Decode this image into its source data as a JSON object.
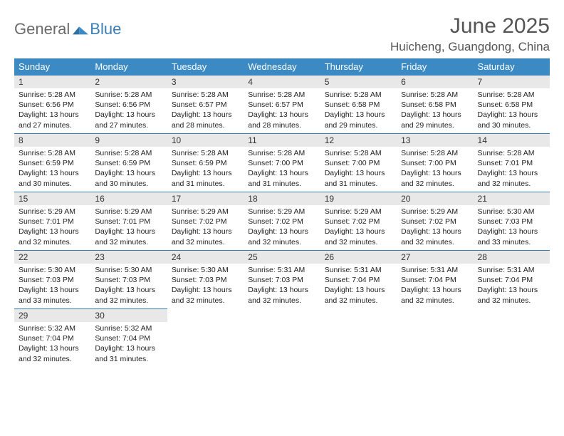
{
  "brand": {
    "part1": "General",
    "part2": "Blue"
  },
  "title": "June 2025",
  "location": "Huicheng, Guangdong, China",
  "colors": {
    "header_bg": "#3b8ac4",
    "header_fg": "#ffffff",
    "daynum_bg": "#e8e8e8",
    "rule": "#3b7fb8",
    "logo_gray": "#6b6b6b",
    "logo_blue": "#3b7fb8",
    "title_color": "#555555",
    "text_color": "#222222",
    "background": "#ffffff"
  },
  "typography": {
    "title_fontsize": 30,
    "location_fontsize": 17,
    "weekday_fontsize": 13,
    "daynum_fontsize": 12,
    "body_fontsize": 10.5
  },
  "weekdays": [
    "Sunday",
    "Monday",
    "Tuesday",
    "Wednesday",
    "Thursday",
    "Friday",
    "Saturday"
  ],
  "weeks": [
    [
      {
        "n": "1",
        "sr": "Sunrise: 5:28 AM",
        "ss": "Sunset: 6:56 PM",
        "d1": "Daylight: 13 hours",
        "d2": "and 27 minutes."
      },
      {
        "n": "2",
        "sr": "Sunrise: 5:28 AM",
        "ss": "Sunset: 6:56 PM",
        "d1": "Daylight: 13 hours",
        "d2": "and 27 minutes."
      },
      {
        "n": "3",
        "sr": "Sunrise: 5:28 AM",
        "ss": "Sunset: 6:57 PM",
        "d1": "Daylight: 13 hours",
        "d2": "and 28 minutes."
      },
      {
        "n": "4",
        "sr": "Sunrise: 5:28 AM",
        "ss": "Sunset: 6:57 PM",
        "d1": "Daylight: 13 hours",
        "d2": "and 28 minutes."
      },
      {
        "n": "5",
        "sr": "Sunrise: 5:28 AM",
        "ss": "Sunset: 6:58 PM",
        "d1": "Daylight: 13 hours",
        "d2": "and 29 minutes."
      },
      {
        "n": "6",
        "sr": "Sunrise: 5:28 AM",
        "ss": "Sunset: 6:58 PM",
        "d1": "Daylight: 13 hours",
        "d2": "and 29 minutes."
      },
      {
        "n": "7",
        "sr": "Sunrise: 5:28 AM",
        "ss": "Sunset: 6:58 PM",
        "d1": "Daylight: 13 hours",
        "d2": "and 30 minutes."
      }
    ],
    [
      {
        "n": "8",
        "sr": "Sunrise: 5:28 AM",
        "ss": "Sunset: 6:59 PM",
        "d1": "Daylight: 13 hours",
        "d2": "and 30 minutes."
      },
      {
        "n": "9",
        "sr": "Sunrise: 5:28 AM",
        "ss": "Sunset: 6:59 PM",
        "d1": "Daylight: 13 hours",
        "d2": "and 30 minutes."
      },
      {
        "n": "10",
        "sr": "Sunrise: 5:28 AM",
        "ss": "Sunset: 6:59 PM",
        "d1": "Daylight: 13 hours",
        "d2": "and 31 minutes."
      },
      {
        "n": "11",
        "sr": "Sunrise: 5:28 AM",
        "ss": "Sunset: 7:00 PM",
        "d1": "Daylight: 13 hours",
        "d2": "and 31 minutes."
      },
      {
        "n": "12",
        "sr": "Sunrise: 5:28 AM",
        "ss": "Sunset: 7:00 PM",
        "d1": "Daylight: 13 hours",
        "d2": "and 31 minutes."
      },
      {
        "n": "13",
        "sr": "Sunrise: 5:28 AM",
        "ss": "Sunset: 7:00 PM",
        "d1": "Daylight: 13 hours",
        "d2": "and 32 minutes."
      },
      {
        "n": "14",
        "sr": "Sunrise: 5:28 AM",
        "ss": "Sunset: 7:01 PM",
        "d1": "Daylight: 13 hours",
        "d2": "and 32 minutes."
      }
    ],
    [
      {
        "n": "15",
        "sr": "Sunrise: 5:29 AM",
        "ss": "Sunset: 7:01 PM",
        "d1": "Daylight: 13 hours",
        "d2": "and 32 minutes."
      },
      {
        "n": "16",
        "sr": "Sunrise: 5:29 AM",
        "ss": "Sunset: 7:01 PM",
        "d1": "Daylight: 13 hours",
        "d2": "and 32 minutes."
      },
      {
        "n": "17",
        "sr": "Sunrise: 5:29 AM",
        "ss": "Sunset: 7:02 PM",
        "d1": "Daylight: 13 hours",
        "d2": "and 32 minutes."
      },
      {
        "n": "18",
        "sr": "Sunrise: 5:29 AM",
        "ss": "Sunset: 7:02 PM",
        "d1": "Daylight: 13 hours",
        "d2": "and 32 minutes."
      },
      {
        "n": "19",
        "sr": "Sunrise: 5:29 AM",
        "ss": "Sunset: 7:02 PM",
        "d1": "Daylight: 13 hours",
        "d2": "and 32 minutes."
      },
      {
        "n": "20",
        "sr": "Sunrise: 5:29 AM",
        "ss": "Sunset: 7:02 PM",
        "d1": "Daylight: 13 hours",
        "d2": "and 32 minutes."
      },
      {
        "n": "21",
        "sr": "Sunrise: 5:30 AM",
        "ss": "Sunset: 7:03 PM",
        "d1": "Daylight: 13 hours",
        "d2": "and 33 minutes."
      }
    ],
    [
      {
        "n": "22",
        "sr": "Sunrise: 5:30 AM",
        "ss": "Sunset: 7:03 PM",
        "d1": "Daylight: 13 hours",
        "d2": "and 33 minutes."
      },
      {
        "n": "23",
        "sr": "Sunrise: 5:30 AM",
        "ss": "Sunset: 7:03 PM",
        "d1": "Daylight: 13 hours",
        "d2": "and 32 minutes."
      },
      {
        "n": "24",
        "sr": "Sunrise: 5:30 AM",
        "ss": "Sunset: 7:03 PM",
        "d1": "Daylight: 13 hours",
        "d2": "and 32 minutes."
      },
      {
        "n": "25",
        "sr": "Sunrise: 5:31 AM",
        "ss": "Sunset: 7:03 PM",
        "d1": "Daylight: 13 hours",
        "d2": "and 32 minutes."
      },
      {
        "n": "26",
        "sr": "Sunrise: 5:31 AM",
        "ss": "Sunset: 7:04 PM",
        "d1": "Daylight: 13 hours",
        "d2": "and 32 minutes."
      },
      {
        "n": "27",
        "sr": "Sunrise: 5:31 AM",
        "ss": "Sunset: 7:04 PM",
        "d1": "Daylight: 13 hours",
        "d2": "and 32 minutes."
      },
      {
        "n": "28",
        "sr": "Sunrise: 5:31 AM",
        "ss": "Sunset: 7:04 PM",
        "d1": "Daylight: 13 hours",
        "d2": "and 32 minutes."
      }
    ],
    [
      {
        "n": "29",
        "sr": "Sunrise: 5:32 AM",
        "ss": "Sunset: 7:04 PM",
        "d1": "Daylight: 13 hours",
        "d2": "and 32 minutes."
      },
      {
        "n": "30",
        "sr": "Sunrise: 5:32 AM",
        "ss": "Sunset: 7:04 PM",
        "d1": "Daylight: 13 hours",
        "d2": "and 31 minutes."
      },
      null,
      null,
      null,
      null,
      null
    ]
  ]
}
